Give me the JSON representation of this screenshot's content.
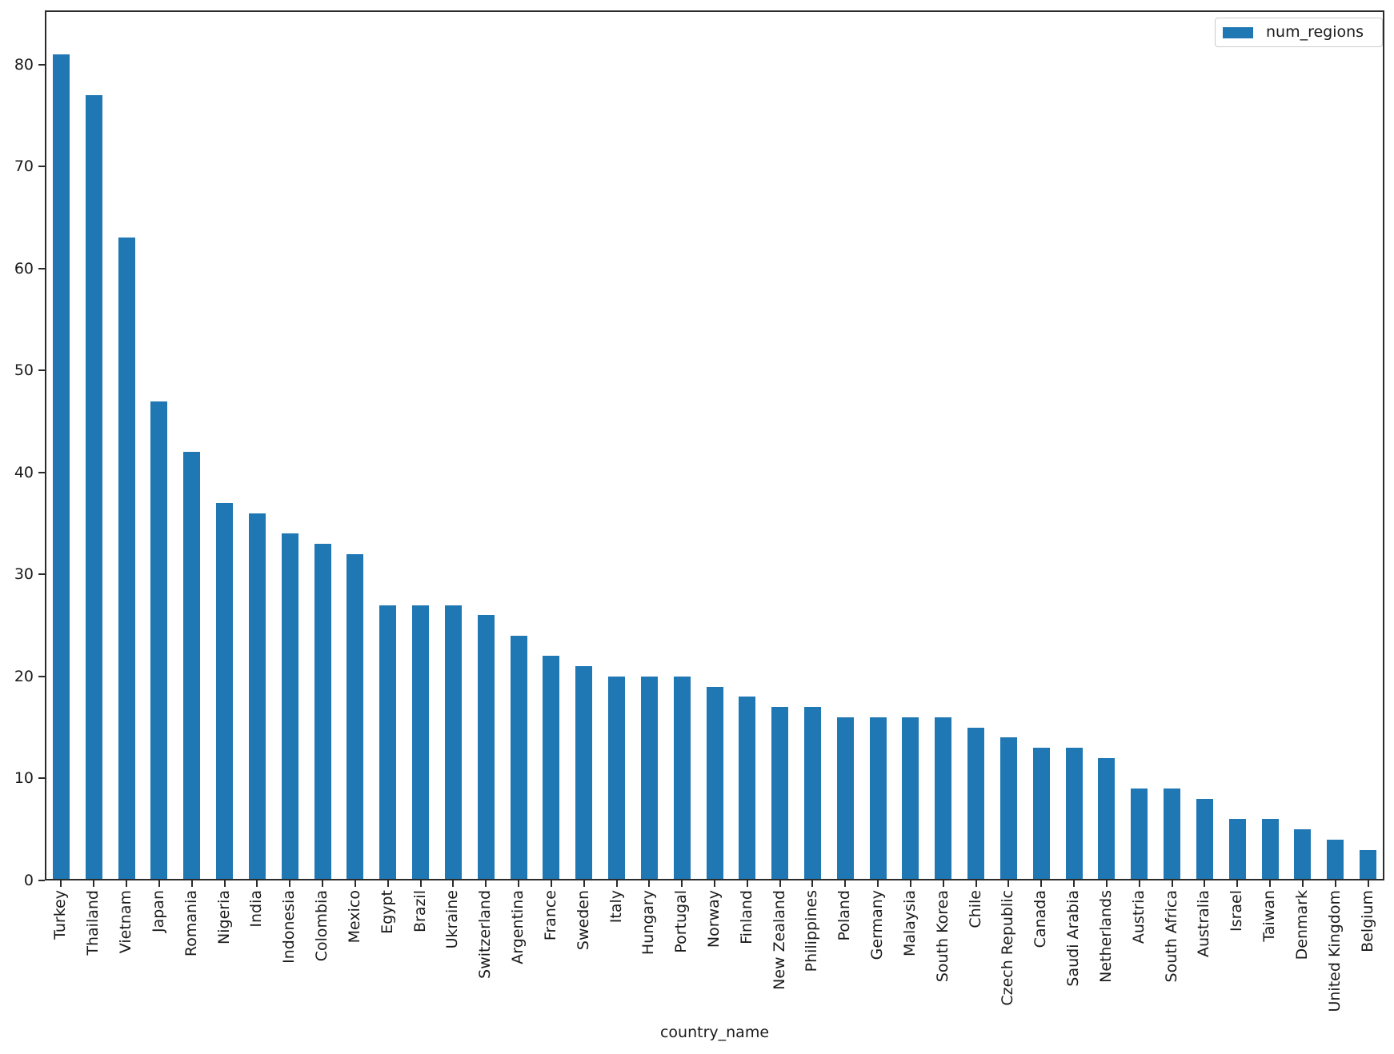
{
  "chart_data": {
    "type": "bar",
    "title": "",
    "xlabel": "country_name",
    "ylabel": "",
    "categories": [
      "Turkey",
      "Thailand",
      "Vietnam",
      "Japan",
      "Romania",
      "Nigeria",
      "India",
      "Indonesia",
      "Colombia",
      "Mexico",
      "Egypt",
      "Brazil",
      "Ukraine",
      "Switzerland",
      "Argentina",
      "France",
      "Sweden",
      "Italy",
      "Hungary",
      "Portugal",
      "Norway",
      "Finland",
      "New Zealand",
      "Philippines",
      "Poland",
      "Germany",
      "Malaysia",
      "South Korea",
      "Chile",
      "Czech Republic",
      "Canada",
      "Saudi Arabia",
      "Netherlands",
      "Austria",
      "South Africa",
      "Australia",
      "Israel",
      "Taiwan",
      "Denmark",
      "United Kingdom",
      "Belgium"
    ],
    "series": [
      {
        "name": "num_regions",
        "values": [
          81,
          77,
          63,
          47,
          42,
          37,
          36,
          34,
          33,
          32,
          27,
          27,
          27,
          26,
          24,
          22,
          21,
          20,
          20,
          20,
          19,
          18,
          17,
          17,
          16,
          16,
          16,
          16,
          15,
          14,
          13,
          13,
          12,
          9,
          9,
          8,
          6,
          6,
          5,
          4,
          3
        ]
      }
    ],
    "yticks": [
      0,
      10,
      20,
      30,
      40,
      50,
      60,
      70,
      80
    ],
    "ylim": [
      0,
      85.3
    ],
    "grid": false,
    "legend": {
      "position": "upper-right",
      "entries": [
        "num_regions"
      ]
    },
    "colors": {
      "bar": "#1f77b4",
      "axis": "#2b2b2b",
      "text": "#1a1a1a",
      "legend_border": "#cccccc"
    }
  }
}
